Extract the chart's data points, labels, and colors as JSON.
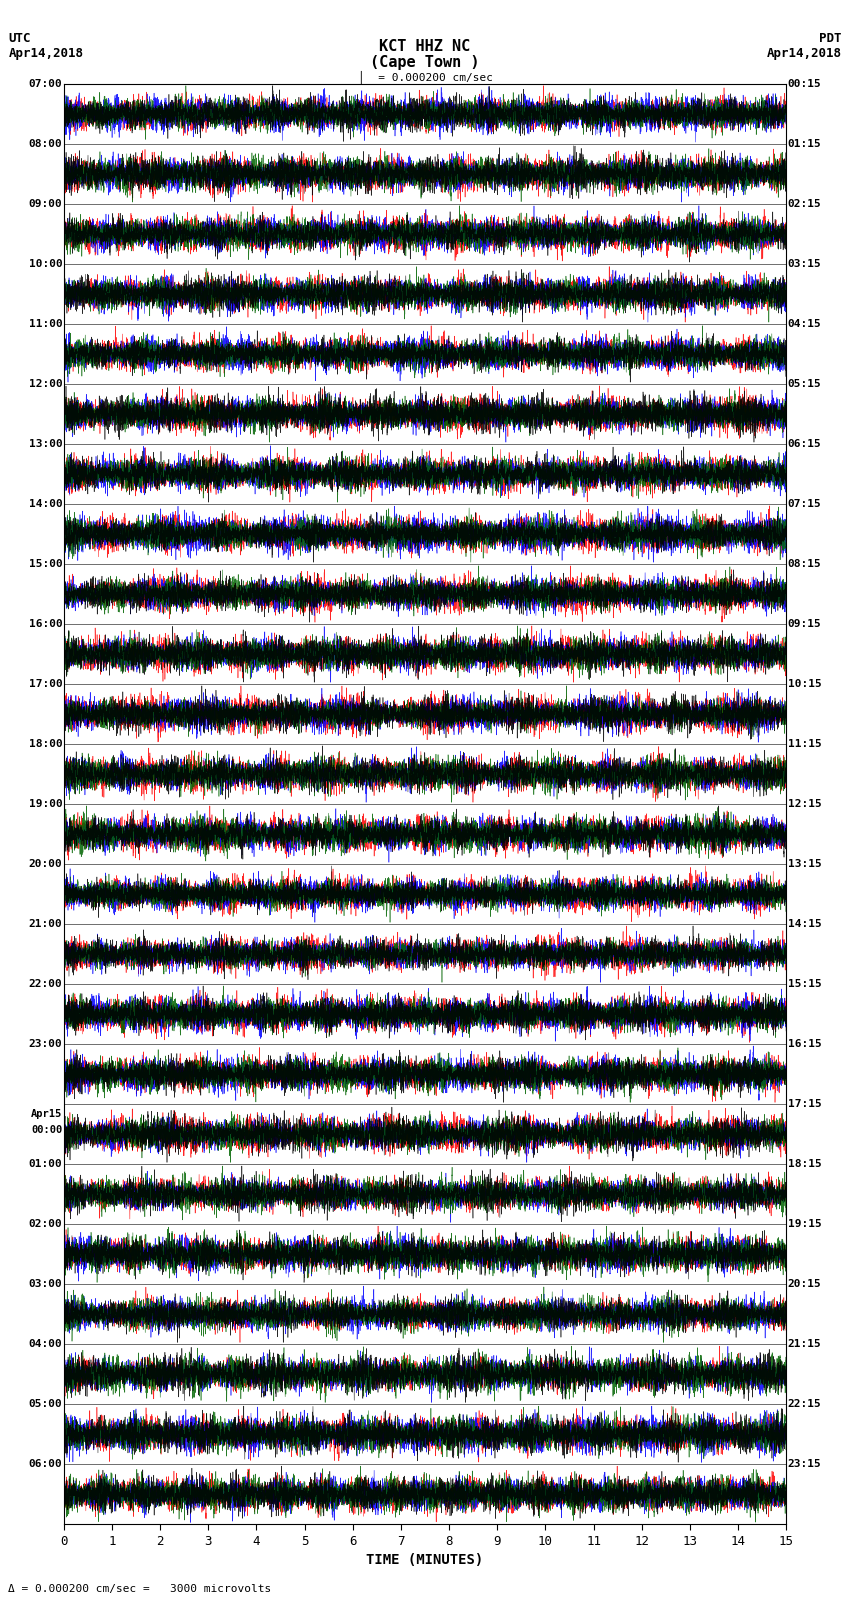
{
  "title_line1": "KCT HHZ NC",
  "title_line2": "(Cape Town )",
  "scale_label": "= 0.000200 cm/sec",
  "left_label_top": "UTC",
  "left_label_date": "Apr14,2018",
  "right_label_top": "PDT",
  "right_label_date": "Apr14,2018",
  "bottom_label": "TIME (MINUTES)",
  "bottom_note": "= 0.000200 cm/sec =   3000 microvolts",
  "utc_times": [
    "07:00",
    "08:00",
    "09:00",
    "10:00",
    "11:00",
    "12:00",
    "13:00",
    "14:00",
    "15:00",
    "16:00",
    "17:00",
    "18:00",
    "19:00",
    "20:00",
    "21:00",
    "22:00",
    "23:00",
    "Apr15\n00:00",
    "01:00",
    "02:00",
    "03:00",
    "04:00",
    "05:00",
    "06:00"
  ],
  "pdt_times": [
    "00:15",
    "01:15",
    "02:15",
    "03:15",
    "04:15",
    "05:15",
    "06:15",
    "07:15",
    "08:15",
    "09:15",
    "10:15",
    "11:15",
    "12:15",
    "13:15",
    "14:15",
    "15:15",
    "16:15",
    "17:15",
    "18:15",
    "19:15",
    "20:15",
    "21:15",
    "22:15",
    "23:15"
  ],
  "n_rows": 24,
  "x_min": 0,
  "x_max": 15,
  "x_ticks": [
    0,
    1,
    2,
    3,
    4,
    5,
    6,
    7,
    8,
    9,
    10,
    11,
    12,
    13,
    14,
    15
  ],
  "colors": [
    "#ff0000",
    "#0000ff",
    "#006400",
    "#000000"
  ],
  "bg_color": "#ffffff",
  "fig_width": 8.5,
  "fig_height": 16.13
}
